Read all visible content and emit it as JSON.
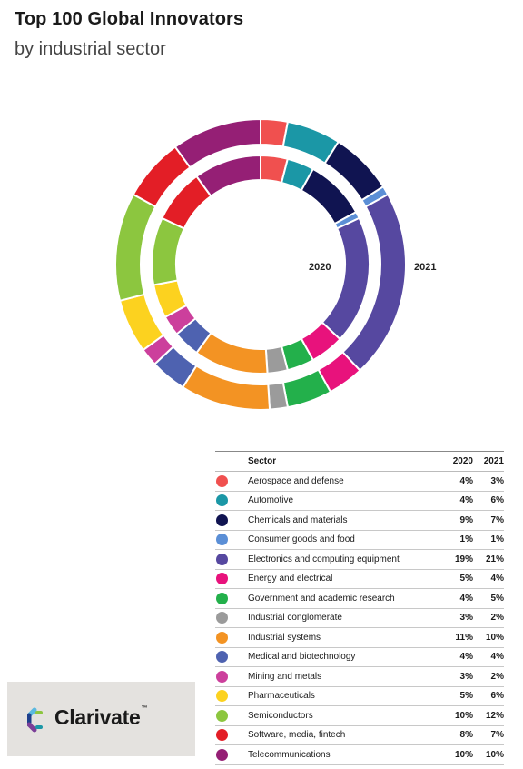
{
  "title": "Top 100 Global Innovators",
  "subtitle": "by industrial sector",
  "brand": {
    "name": "Clarivate",
    "mark": "™"
  },
  "table_headers": {
    "sector": "Sector",
    "y2020": "2020",
    "y2021": "2021"
  },
  "chart_data": {
    "type": "pie",
    "variant": "nested-donut",
    "inner_ring": "2020",
    "outer_ring": "2021",
    "ring_labels": {
      "inner": "2020",
      "outer": "2021"
    },
    "series": [
      {
        "name": "2020",
        "values": [
          4,
          4,
          9,
          1,
          19,
          5,
          4,
          3,
          11,
          4,
          3,
          5,
          10,
          8,
          10
        ]
      },
      {
        "name": "2021",
        "values": [
          3,
          6,
          7,
          1,
          21,
          4,
          5,
          2,
          10,
          4,
          2,
          6,
          12,
          7,
          10
        ]
      }
    ],
    "sectors": [
      {
        "name": "Aerospace and defense",
        "color": "#f0504f",
        "v2020": 4,
        "v2021": 3
      },
      {
        "name": "Automotive",
        "color": "#1b97a6",
        "v2020": 4,
        "v2021": 6
      },
      {
        "name": "Chemicals and materials",
        "color": "#101451",
        "v2020": 9,
        "v2021": 7
      },
      {
        "name": "Consumer goods and food",
        "color": "#5b8fd6",
        "v2020": 1,
        "v2021": 1
      },
      {
        "name": "Electronics and computing equipment",
        "color": "#5648a0",
        "v2020": 19,
        "v2021": 21
      },
      {
        "name": "Energy and electrical",
        "color": "#e8127c",
        "v2020": 5,
        "v2021": 4
      },
      {
        "name": "Government and academic research",
        "color": "#23b04b",
        "v2020": 4,
        "v2021": 5
      },
      {
        "name": "Industrial conglomerate",
        "color": "#9b9b9b",
        "v2020": 3,
        "v2021": 2
      },
      {
        "name": "Industrial systems",
        "color": "#f39323",
        "v2020": 11,
        "v2021": 10
      },
      {
        "name": "Medical and biotechnology",
        "color": "#4e62b0",
        "v2020": 4,
        "v2021": 4
      },
      {
        "name": "Mining and metals",
        "color": "#cc3f9c",
        "v2020": 3,
        "v2021": 2
      },
      {
        "name": "Pharmaceuticals",
        "color": "#fcd21f",
        "v2020": 5,
        "v2021": 6
      },
      {
        "name": "Semiconductors",
        "color": "#8cc63f",
        "v2020": 10,
        "v2021": 12
      },
      {
        "name": "Software, media, fintech",
        "color": "#e31e26",
        "v2020": 8,
        "v2021": 7
      },
      {
        "name": "Telecommunications",
        "color": "#951f75",
        "v2020": 10,
        "v2021": 10
      }
    ]
  }
}
